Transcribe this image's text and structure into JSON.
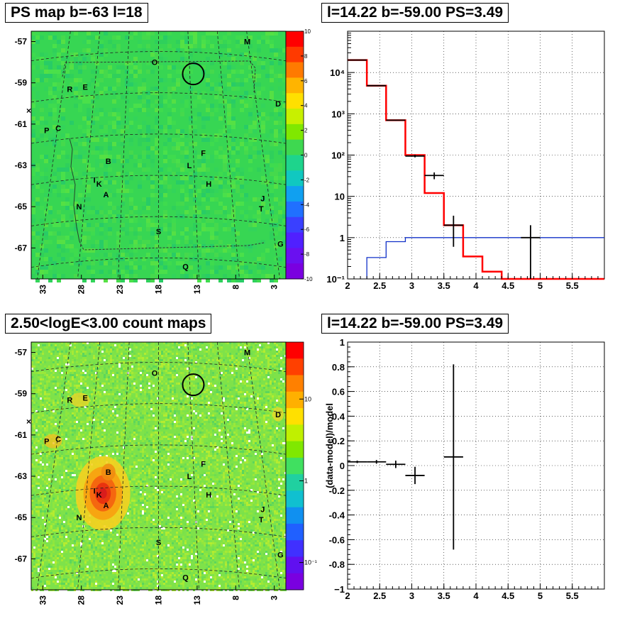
{
  "titles": {
    "top_left": "PS map b=-63 l=18",
    "top_right": "l=14.22 b=-59.00 PS=3.49",
    "bottom_left": "2.50<logE<3.00 count maps",
    "bottom_right": "l=14.22 b=-59.00 PS=3.49"
  },
  "map": {
    "lat_ticks": [
      "-57",
      "-59",
      "-61",
      "-63",
      "-65",
      "-67"
    ],
    "lon_ticks": [
      "33",
      "28",
      "23",
      "18",
      "13",
      "8",
      "3"
    ],
    "source_labels": [
      {
        "t": "M",
        "lon": 6.5,
        "lat": -57.0
      },
      {
        "t": "O",
        "lon": 18.5,
        "lat": -58.0
      },
      {
        "t": "R",
        "lon": 29.5,
        "lat": -59.3
      },
      {
        "t": "E",
        "lon": 27.5,
        "lat": -59.2
      },
      {
        "t": "D",
        "lon": 2.5,
        "lat": -60.0
      },
      {
        "t": "P",
        "lon": 32.5,
        "lat": -61.3
      },
      {
        "t": "C",
        "lon": 31.0,
        "lat": -61.2
      },
      {
        "t": "F",
        "lon": 12.2,
        "lat": -62.4
      },
      {
        "t": "B",
        "lon": 24.5,
        "lat": -62.8
      },
      {
        "t": "L",
        "lon": 14.0,
        "lat": -63.0
      },
      {
        "t": "I",
        "lon": 26.3,
        "lat": -63.7
      },
      {
        "t": "K",
        "lon": 25.7,
        "lat": -63.9
      },
      {
        "t": "H",
        "lon": 11.5,
        "lat": -63.9
      },
      {
        "t": "A",
        "lon": 24.8,
        "lat": -64.4
      },
      {
        "t": "J",
        "lon": 4.5,
        "lat": -64.6
      },
      {
        "t": "N",
        "lon": 28.3,
        "lat": -65.0
      },
      {
        "t": "T",
        "lon": 4.7,
        "lat": -65.1
      },
      {
        "t": "S",
        "lon": 18.0,
        "lat": -66.2
      },
      {
        "t": "G",
        "lon": 2.2,
        "lat": -66.8
      },
      {
        "t": "Q",
        "lon": 14.5,
        "lat": -67.9
      }
    ],
    "circle": {
      "lon": 13.5,
      "lat": -58.5
    },
    "ps_colorbar_ticks": [
      "10",
      "8",
      "6",
      "4",
      "2",
      "0",
      "-2",
      "-4",
      "-6",
      "-8",
      "-10"
    ],
    "count_colorbar_ticks": [
      "10",
      "1",
      "10⁻¹"
    ]
  },
  "spectrum_chart": {
    "type": "line",
    "xlim": [
      2,
      6
    ],
    "ylim_log": [
      0.1,
      100000
    ],
    "x_ticks": [
      "2",
      "2.5",
      "3",
      "3.5",
      "4",
      "4.5",
      "5",
      "5.5"
    ],
    "y_ticks": [
      "10⁴",
      "10³",
      "10²",
      "10",
      "1",
      "10⁻¹"
    ],
    "model_red_step": [
      {
        "x0": 2.0,
        "x1": 2.3,
        "y": 20000
      },
      {
        "x0": 2.3,
        "x1": 2.6,
        "y": 4800
      },
      {
        "x0": 2.6,
        "x1": 2.9,
        "y": 700
      },
      {
        "x0": 2.9,
        "x1": 3.2,
        "y": 100
      },
      {
        "x0": 3.2,
        "x1": 3.5,
        "y": 12
      },
      {
        "x0": 3.5,
        "x1": 3.8,
        "y": 2
      },
      {
        "x0": 3.8,
        "x1": 4.1,
        "y": 0.35
      },
      {
        "x0": 4.1,
        "x1": 4.4,
        "y": 0.15
      },
      {
        "x0": 4.4,
        "x1": 6.0,
        "y": 0.1
      }
    ],
    "bg_blue_step": [
      {
        "x0": 2.3,
        "x1": 2.6,
        "y": 0.33
      },
      {
        "x0": 2.6,
        "x1": 2.9,
        "y": 0.8
      },
      {
        "x0": 2.9,
        "x1": 6.0,
        "y": 1.0
      }
    ],
    "data_points": [
      {
        "x": 2.15,
        "y": 20000,
        "xerr": 0.15,
        "ylo": 19800,
        "yhi": 20200
      },
      {
        "x": 2.45,
        "y": 4800,
        "xerr": 0.15,
        "ylo": 4700,
        "yhi": 4900
      },
      {
        "x": 2.75,
        "y": 700,
        "xerr": 0.15,
        "ylo": 680,
        "yhi": 720
      },
      {
        "x": 3.05,
        "y": 95,
        "xerr": 0.15,
        "ylo": 88,
        "yhi": 102
      },
      {
        "x": 3.35,
        "y": 32,
        "xerr": 0.15,
        "ylo": 26,
        "yhi": 38
      },
      {
        "x": 3.65,
        "y": 2.0,
        "xerr": 0.15,
        "ylo": 0.6,
        "yhi": 3.4
      },
      {
        "x": 4.85,
        "y": 1.0,
        "xerr": 0.15,
        "ylo": 0.1,
        "yhi": 2.0
      }
    ]
  },
  "residual_chart": {
    "type": "scatter",
    "xlim": [
      2,
      6
    ],
    "ylim": [
      -1,
      1
    ],
    "ylabel": "(data-model)/model",
    "x_ticks": [
      "2",
      "2.5",
      "3",
      "3.5",
      "4",
      "4.5",
      "5",
      "5.5"
    ],
    "y_ticks": [
      "1",
      "0.8",
      "0.6",
      "0.4",
      "0.2",
      "0",
      "-0.2",
      "-0.4",
      "-0.6",
      "-0.8",
      "-1"
    ],
    "points": [
      {
        "x": 2.15,
        "y": 0.03,
        "xerr": 0.15,
        "yerr": 0.01
      },
      {
        "x": 2.45,
        "y": 0.03,
        "xerr": 0.15,
        "yerr": 0.015
      },
      {
        "x": 2.75,
        "y": 0.01,
        "xerr": 0.15,
        "yerr": 0.03
      },
      {
        "x": 3.05,
        "y": -0.08,
        "xerr": 0.15,
        "yerr": 0.07
      },
      {
        "x": 3.65,
        "y": 0.07,
        "xerr": 0.15,
        "yerr": 0.75
      }
    ]
  },
  "chart_data": [
    {
      "type": "line",
      "title": "l=14.22 b=-59.00 PS=3.49",
      "xlabel": "",
      "ylabel": "",
      "xlim": [
        2,
        6
      ],
      "ylim": [
        0.1,
        100000
      ],
      "log_y": true,
      "series": [
        {
          "name": "",
          "values": [
            20000,
            4800,
            700,
            100,
            12,
            2,
            0.35,
            0.15,
            0.1
          ]
        }
      ],
      "categories": [
        "2.15",
        "2.45",
        "2.75",
        "3.05",
        "3.35",
        "3.65",
        "3.95",
        "4.25",
        "4.55"
      ]
    },
    {
      "type": "scatter",
      "title": "l=14.22 b=-59.00 PS=3.49",
      "xlabel": "",
      "ylabel": "(data-model)/model",
      "xlim": [
        2,
        6
      ],
      "ylim": [
        -1,
        1
      ],
      "x": [
        2.15,
        2.45,
        2.75,
        3.05,
        3.65
      ],
      "y": [
        0.03,
        0.03,
        0.01,
        -0.08,
        0.07
      ]
    }
  ]
}
